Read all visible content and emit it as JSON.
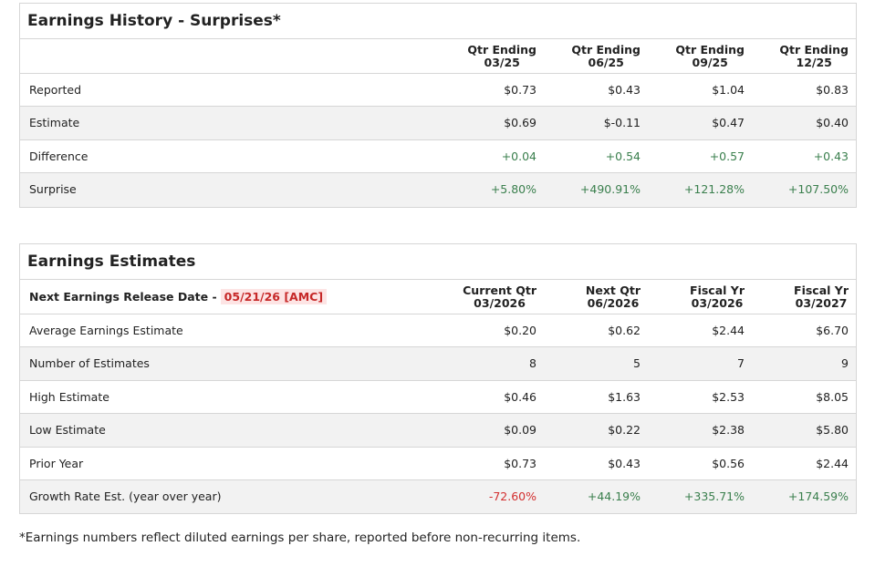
{
  "earnings_history": {
    "title": "Earnings History - Surprises*",
    "columns": [
      {
        "line1": "Qtr Ending",
        "line2": "03/25"
      },
      {
        "line1": "Qtr Ending",
        "line2": "06/25"
      },
      {
        "line1": "Qtr Ending",
        "line2": "09/25"
      },
      {
        "line1": "Qtr Ending",
        "line2": "12/25"
      }
    ],
    "rows": [
      {
        "label": "Reported",
        "values": [
          "$0.73",
          "$0.43",
          "$1.04",
          "$0.83"
        ]
      },
      {
        "label": "Estimate",
        "values": [
          "$0.69",
          "$-0.11",
          "$0.47",
          "$0.40"
        ]
      },
      {
        "label": "Difference",
        "values": [
          "+0.04",
          "+0.54",
          "+0.57",
          "+0.43"
        ]
      },
      {
        "label": "Surprise",
        "values": [
          "+5.80%",
          "+490.91%",
          "+121.28%",
          "+107.50%"
        ]
      }
    ]
  },
  "earnings_estimates": {
    "title": "Earnings Estimates",
    "release_label": "Next Earnings Release Date -",
    "release_date": "05/21/26 [AMC]",
    "columns": [
      {
        "line1": "Current Qtr",
        "line2": "03/2026"
      },
      {
        "line1": "Next Qtr",
        "line2": "06/2026"
      },
      {
        "line1": "Fiscal Yr",
        "line2": "03/2026"
      },
      {
        "line1": "Fiscal Yr",
        "line2": "03/2027"
      }
    ],
    "rows": [
      {
        "label": "Average Earnings Estimate",
        "values": [
          "$0.20",
          "$0.62",
          "$2.44",
          "$6.70"
        ]
      },
      {
        "label": "Number of Estimates",
        "values": [
          "8",
          "5",
          "7",
          "9"
        ]
      },
      {
        "label": "High Estimate",
        "values": [
          "$0.46",
          "$1.63",
          "$2.53",
          "$8.05"
        ]
      },
      {
        "label": "Low Estimate",
        "values": [
          "$0.09",
          "$0.22",
          "$2.38",
          "$5.80"
        ]
      },
      {
        "label": "Prior Year",
        "values": [
          "$0.73",
          "$0.43",
          "$0.56",
          "$2.44"
        ]
      },
      {
        "label": "Growth Rate Est. (year over year)",
        "values": [
          "-72.60%",
          "+44.19%",
          "+335.71%",
          "+174.59%"
        ]
      }
    ]
  },
  "footnote": "*Earnings numbers reflect diluted earnings per share, reported before non-recurring items."
}
